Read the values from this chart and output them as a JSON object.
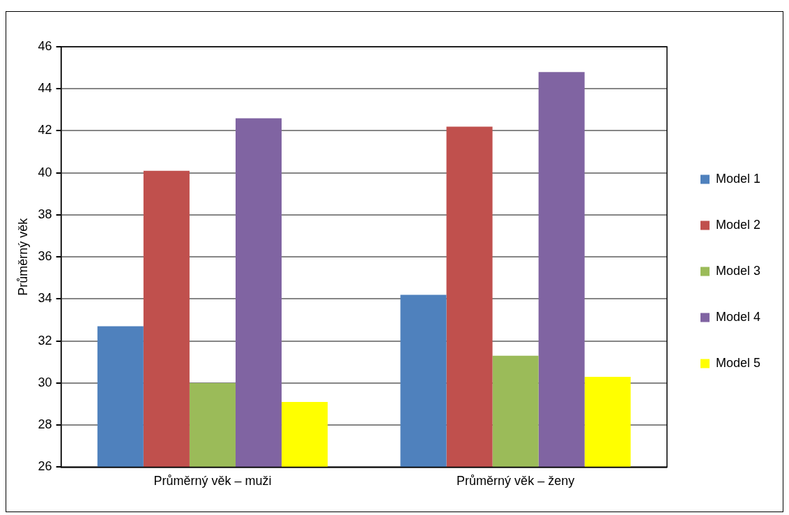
{
  "chart_data": {
    "type": "bar",
    "ylabel": "Průměrný věk",
    "categories": [
      "Průměrný věk – muži",
      "Průměrný věk – ženy"
    ],
    "series": [
      {
        "name": "Model 1",
        "color": "#4f81bd",
        "values": [
          32.7,
          34.2
        ]
      },
      {
        "name": "Model 2",
        "color": "#c0504d",
        "values": [
          40.1,
          42.2
        ]
      },
      {
        "name": "Model 3",
        "color": "#9bbb59",
        "values": [
          30.0,
          31.3
        ]
      },
      {
        "name": "Model 4",
        "color": "#8064a2",
        "values": [
          42.6,
          44.8
        ]
      },
      {
        "name": "Model 5",
        "color": "#ffff00",
        "values": [
          29.1,
          30.3
        ]
      }
    ],
    "ylim": [
      26,
      46
    ],
    "yticks": [
      26,
      28,
      30,
      32,
      34,
      36,
      38,
      40,
      42,
      44,
      46
    ],
    "grid": "y",
    "legend": "right"
  }
}
